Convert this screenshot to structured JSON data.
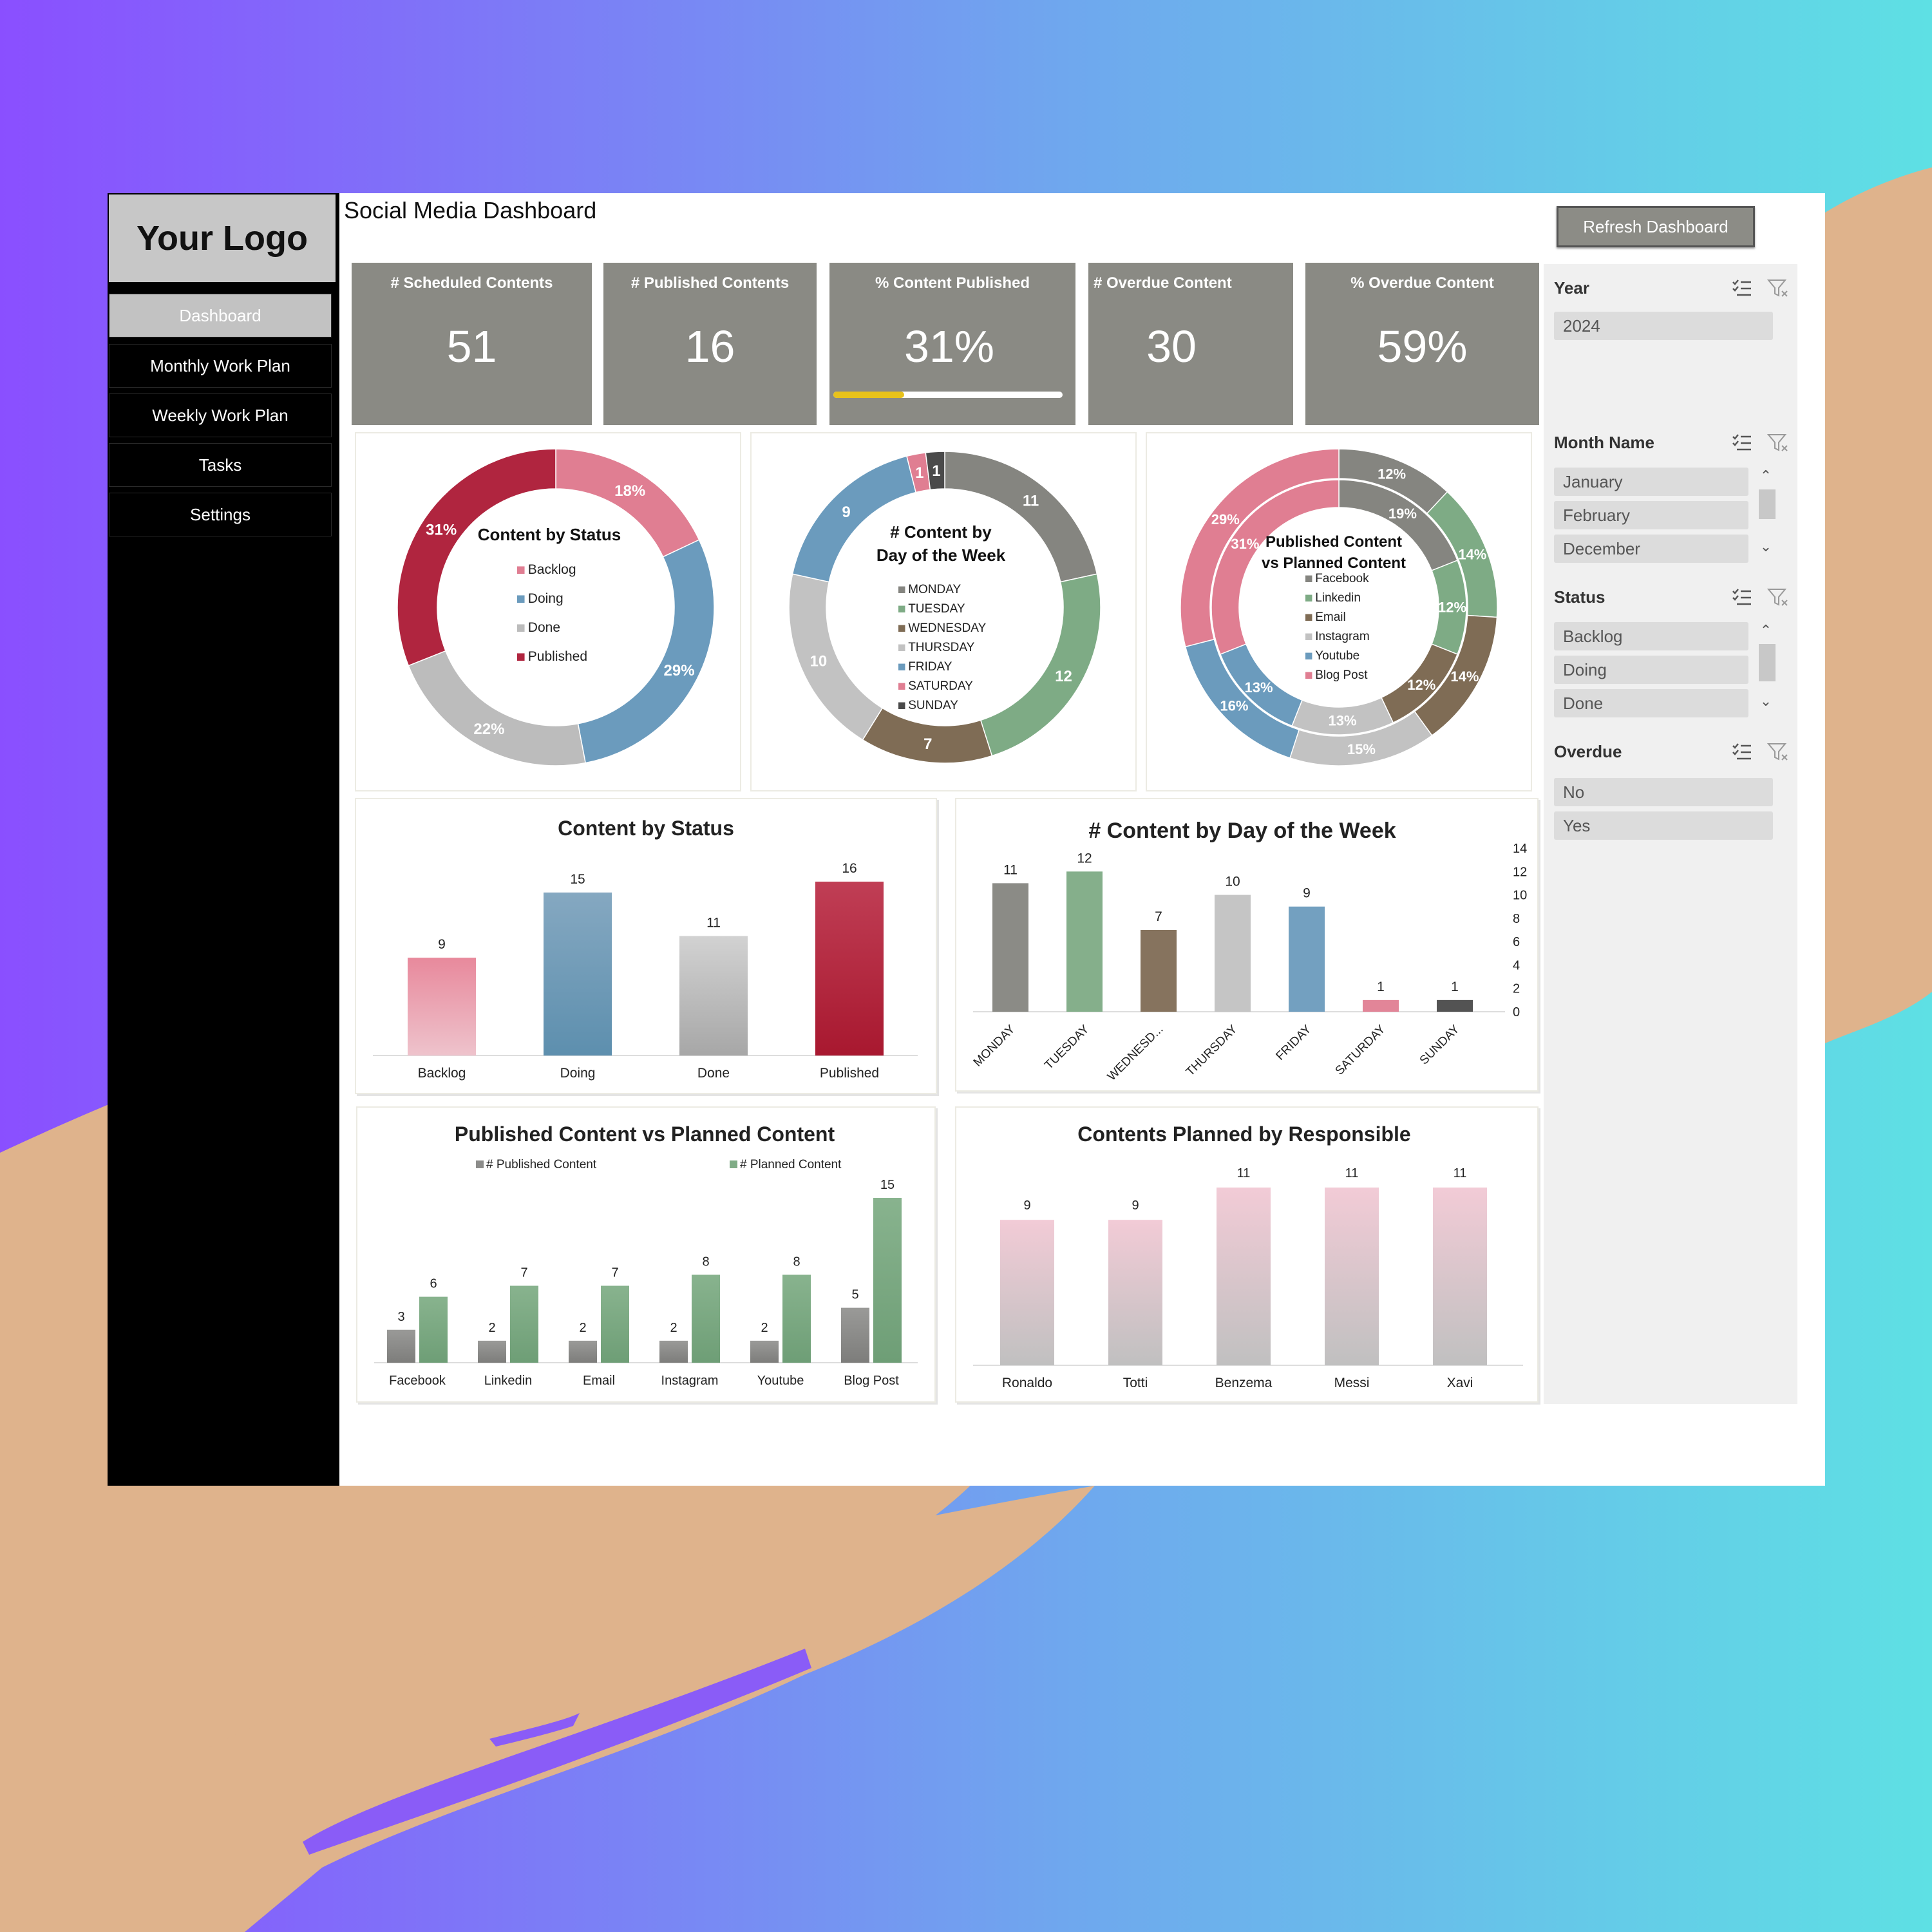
{
  "app": {
    "logo_text": "Your Logo",
    "title": "Social Media Dashboard",
    "refresh_label": "Refresh Dashboard"
  },
  "nav": [
    {
      "label": "Dashboard",
      "active": true
    },
    {
      "label": "Monthly Work Plan",
      "active": false
    },
    {
      "label": "Weekly Work Plan",
      "active": false
    },
    {
      "label": "Tasks",
      "active": false
    },
    {
      "label": "Settings",
      "active": false
    }
  ],
  "kpis": [
    {
      "label": "# Scheduled Contents",
      "value": "51"
    },
    {
      "label": "# Published Contents",
      "value": "16"
    },
    {
      "label": "% Content Published",
      "value": "31%",
      "progress": 0.31
    },
    {
      "label": "# Overdue Content",
      "value": "30"
    },
    {
      "label": "% Overdue Content",
      "value": "59%"
    }
  ],
  "colors": {
    "accent_progress": "#e8c21b",
    "kpi_bg": "#8a8a84",
    "backlog": "#e07e92",
    "doing": "#6b9bbd",
    "done": "#bcbcbc",
    "published": "#b0253f",
    "monday": "#858580",
    "tuesday": "#7eab85",
    "wednesday": "#7f6c55",
    "thursday": "#c2c2c2",
    "friday": "#6b9bbd",
    "saturday": "#e07e92",
    "sunday": "#4a4a4a",
    "planned_green": "#80ac86",
    "published_grey": "#8c8c8a",
    "responsible_pink": "#f0c9d4"
  },
  "slicers": {
    "year": {
      "title": "Year",
      "items": [
        "2024"
      ]
    },
    "month": {
      "title": "Month Name",
      "items": [
        "January",
        "February",
        "December"
      ]
    },
    "status": {
      "title": "Status",
      "items": [
        "Backlog",
        "Doing",
        "Done"
      ]
    },
    "overdue": {
      "title": "Overdue",
      "items": [
        "No",
        "Yes"
      ]
    }
  },
  "chart_data": [
    {
      "id": "donut-status",
      "type": "pie",
      "title": "Content by Status",
      "labels": [
        "Backlog",
        "Doing",
        "Done",
        "Published"
      ],
      "values": [
        18,
        29,
        22,
        31
      ],
      "data_labels": [
        "18%",
        "29%",
        "22%",
        "31%"
      ],
      "legend": "center"
    },
    {
      "id": "donut-day",
      "type": "pie",
      "title": "# Content by Day of the Week",
      "title_lines": [
        "# Content by",
        "Day of the Week"
      ],
      "labels": [
        "MONDAY",
        "TUESDAY",
        "WEDNESDAY",
        "THURSDAY",
        "FRIDAY",
        "SATURDAY",
        "SUNDAY"
      ],
      "values": [
        11,
        12,
        7,
        10,
        9,
        1,
        1
      ],
      "data_labels": [
        "11",
        "12",
        "7",
        "10",
        "9",
        "1",
        "1"
      ],
      "legend": "center"
    },
    {
      "id": "donut-channel",
      "type": "pie",
      "title": "Published Content vs Planned Content",
      "title_lines": [
        "Published Content",
        "vs Planned Content"
      ],
      "labels": [
        "Facebook",
        "Linkedin",
        "Email",
        "Instagram",
        "Youtube",
        "Blog Post"
      ],
      "series": [
        {
          "values": [
            19,
            12,
            12,
            13,
            13,
            31
          ],
          "data_labels": [
            "19%",
            "12%",
            "12%",
            "13%",
            "13%",
            "31%"
          ]
        },
        {
          "values": [
            12,
            14,
            14,
            15,
            16,
            29
          ],
          "data_labels": [
            "12%",
            "14%",
            "14%",
            "15%",
            "16%",
            "29%"
          ]
        }
      ],
      "legend": "center"
    },
    {
      "id": "bar-status",
      "type": "bar",
      "title": "Content by Status",
      "categories": [
        "Backlog",
        "Doing",
        "Done",
        "Published"
      ],
      "values": [
        9,
        15,
        11,
        16
      ],
      "ylim": [
        0,
        16
      ]
    },
    {
      "id": "bar-day",
      "type": "bar",
      "title": "# Content by Day of the Week",
      "categories": [
        "MONDAY",
        "TUESDAY",
        "WEDNESD...",
        "THURSDAY",
        "FRIDAY",
        "SATURDAY",
        "SUNDAY"
      ],
      "values": [
        11,
        12,
        7,
        10,
        9,
        1,
        1
      ],
      "ylim": [
        0,
        14
      ],
      "yticks": [
        "0",
        "2",
        "4",
        "6",
        "8",
        "10",
        "12",
        "14"
      ],
      "y_axis_side": "right"
    },
    {
      "id": "bar-channel",
      "type": "bar",
      "title": "Published  Content vs Planned Content",
      "categories": [
        "Facebook",
        "Linkedin",
        "Email",
        "Instagram",
        "Youtube",
        "Blog Post"
      ],
      "series": [
        {
          "name": "# Published Content",
          "values": [
            3,
            2,
            2,
            2,
            2,
            5
          ]
        },
        {
          "name": "# Planned Content",
          "values": [
            6,
            7,
            7,
            8,
            8,
            15
          ]
        }
      ],
      "ylim": [
        0,
        15
      ],
      "legend": "top"
    },
    {
      "id": "bar-responsible",
      "type": "bar",
      "title": "Contents Planned by Responsible",
      "categories": [
        "Ronaldo",
        "Totti",
        "Benzema",
        "Messi",
        "Xavi"
      ],
      "values": [
        9,
        9,
        11,
        11,
        11
      ],
      "ylim": [
        0,
        11
      ]
    }
  ]
}
